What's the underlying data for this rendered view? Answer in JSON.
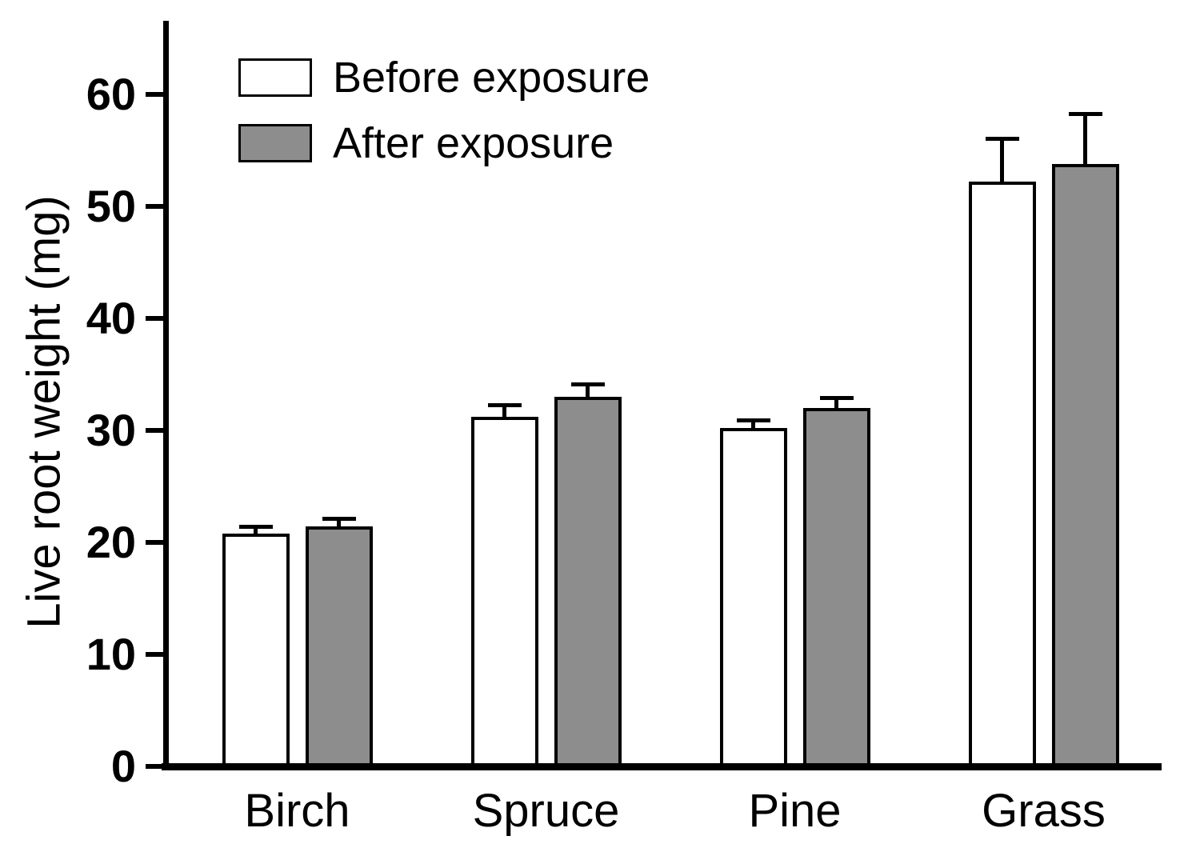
{
  "chart_data": {
    "type": "bar",
    "title": "",
    "ylabel": "Live root weight (mg)",
    "xlabel": "",
    "ylim": [
      0,
      65
    ],
    "yticks": [
      0,
      10,
      20,
      30,
      40,
      50,
      60
    ],
    "categories": [
      "Birch",
      "Spruce",
      "Pine",
      "Grass"
    ],
    "series": [
      {
        "name": "Before exposure",
        "color": "#ffffff",
        "values": [
          20.8,
          31.2,
          30.2,
          52.2
        ],
        "errors": [
          0.8,
          1.2,
          0.9,
          4.0
        ]
      },
      {
        "name": "After exposure",
        "color": "#8d8d8d",
        "values": [
          21.4,
          33.0,
          32.0,
          53.8
        ],
        "errors": [
          0.9,
          1.3,
          1.1,
          4.6
        ]
      }
    ],
    "legend_position": "top-left",
    "grid": false,
    "error_bars": true,
    "axis_color": "#000000",
    "bar_edge_color": "#000000"
  }
}
